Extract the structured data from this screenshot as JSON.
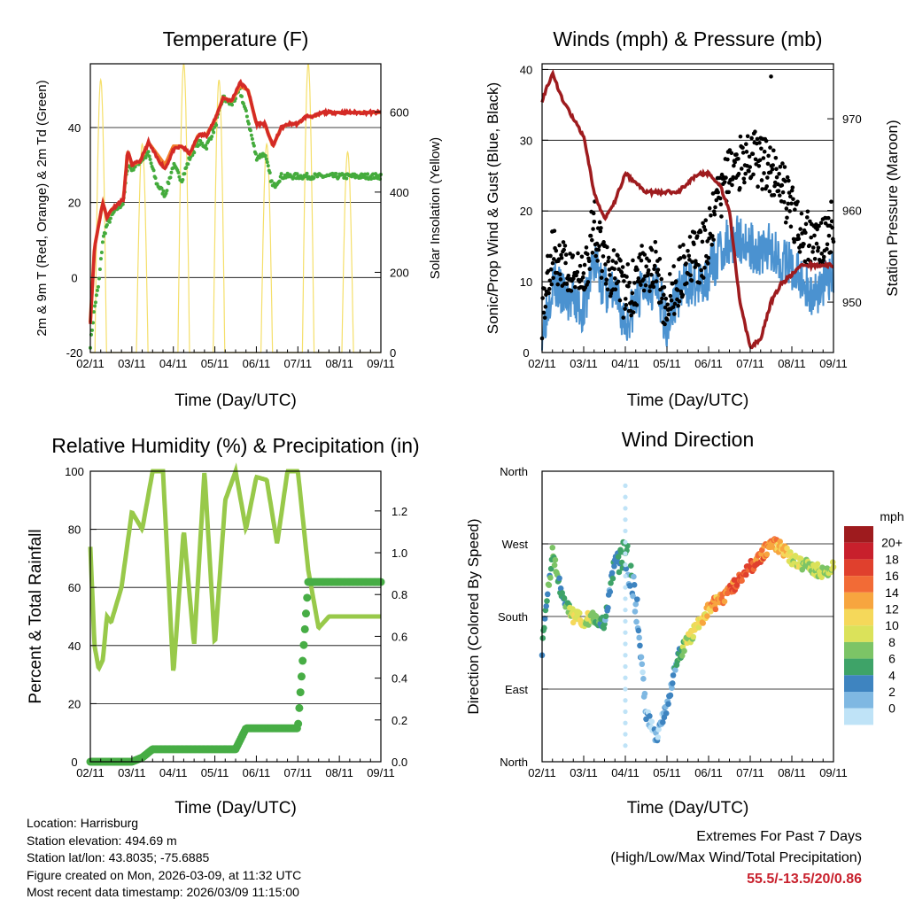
{
  "panels": {
    "temperature": {
      "title": "Temperature (F)",
      "ylabel": "2m & 9m T (Red, Orange) & 2m Td (Green)",
      "ylabel2": "Solar Insolation (Yellow)",
      "xlabel": "Time (Day/UTC)",
      "yticks": [
        "-20",
        "0",
        "20",
        "40"
      ],
      "y2ticks": [
        "0",
        "200",
        "400",
        "600"
      ]
    },
    "winds": {
      "title": "Winds (mph) & Pressure (mb)",
      "ylabel": "Sonic/Prop Wind & Gust (Blue, Black)",
      "ylabel2": "Station Pressure (Maroon)",
      "xlabel": "Time (Day/UTC)",
      "yticks": [
        "0",
        "10",
        "20",
        "30",
        "40"
      ],
      "y2ticks": [
        "950",
        "960",
        "970"
      ]
    },
    "humidity": {
      "title": "Relative Humidity (%) & Precipitation (in)",
      "ylabel": "Percent & Total Rainfall",
      "xlabel": "Time (Day/UTC)",
      "yticks": [
        "0",
        "20",
        "40",
        "60",
        "80",
        "100"
      ],
      "y2ticks": [
        "0.0",
        "0.2",
        "0.4",
        "0.6",
        "0.8",
        "1.0",
        "1.2"
      ]
    },
    "direction": {
      "title": "Wind Direction",
      "ylabel": "Direction (Colored By Speed)",
      "xlabel": "Time (Day/UTC)",
      "yticks": [
        "North",
        "East",
        "South",
        "West",
        "North"
      ]
    }
  },
  "xticks": [
    "02/11",
    "03/11",
    "04/11",
    "05/11",
    "06/11",
    "07/11",
    "08/11",
    "09/11"
  ],
  "legend": {
    "unit": "mph",
    "labels": [
      "20+",
      "18",
      "16",
      "14",
      "12",
      "10",
      "8",
      "6",
      "4",
      "2",
      "0"
    ],
    "colors": [
      "#9e1b1e",
      "#c8202c",
      "#e0402d",
      "#f26b36",
      "#f7a53f",
      "#f5d85a",
      "#dbe25a",
      "#7cc466",
      "#3ea368",
      "#3e84c0",
      "#7fb8e2",
      "#bfe3f7"
    ]
  },
  "info": {
    "location": "Location: Harrisburg",
    "elevation": "Station elevation: 494.69 m",
    "latlon": "Station lat/lon: 43.8035; -75.6885",
    "created": "Figure created on Mon, 2026-03-09, at 11:32 UTC",
    "latest": "Most recent data timestamp: 2026/03/09 11:15:00"
  },
  "extremes": {
    "line1": "Extremes For Past 7 Days",
    "line2": "(High/Low/Max Wind/Total Precipitation)",
    "values": "55.5/-13.5/20/0.86"
  },
  "chart_data": [
    {
      "type": "line",
      "title": "Temperature (F)",
      "ylim": [
        -20,
        57
      ],
      "y2lim": [
        0,
        720
      ],
      "x": [
        0,
        0.1,
        0.2,
        0.3,
        0.4,
        0.5,
        0.6,
        0.7,
        0.8,
        0.9,
        1.0,
        1.2,
        1.4,
        1.6,
        1.8,
        2.0,
        2.2,
        2.4,
        2.6,
        2.8,
        3.0,
        3.2,
        3.4,
        3.6,
        3.8,
        4.0,
        4.2,
        4.4,
        4.6,
        4.8,
        5.0,
        5.2,
        5.4,
        5.6,
        5.8,
        6.0,
        6.2,
        6.4,
        6.6,
        6.8,
        7.0
      ],
      "series": [
        {
          "name": "2m T",
          "color": "#d42a26",
          "values": [
            -12,
            8,
            14,
            20,
            16,
            18,
            19,
            20,
            21,
            34,
            30,
            31,
            36,
            32,
            29,
            34,
            35,
            33,
            38,
            38,
            42,
            48,
            47,
            52,
            50,
            41,
            41,
            35,
            40,
            41,
            41,
            43,
            43,
            44,
            44,
            44,
            44,
            44,
            44,
            44,
            44
          ]
        },
        {
          "name": "9m T",
          "color": "#f27f2c",
          "values": [
            -12,
            8,
            14,
            20,
            16,
            18,
            19,
            20,
            21,
            34,
            30,
            31,
            36,
            33,
            30,
            35,
            35,
            33,
            38,
            38,
            42,
            48,
            47,
            51,
            50,
            41,
            41,
            35,
            40,
            41,
            41,
            43,
            43,
            44,
            44,
            44,
            44,
            44,
            44,
            44,
            44
          ]
        },
        {
          "name": "2m Td",
          "color": "#44ab3c",
          "values": [
            -18,
            -8,
            -2,
            10,
            14,
            16,
            18,
            19,
            20,
            30,
            29,
            31,
            33,
            25,
            22,
            30,
            26,
            32,
            36,
            35,
            40,
            48,
            46,
            50,
            42,
            32,
            33,
            24,
            27,
            27,
            27,
            27,
            27,
            27,
            27,
            27,
            27,
            27,
            27,
            27,
            27
          ]
        },
        {
          "name": "Solar Insolation",
          "color": "#f5df6a",
          "peaks": [
            0.25,
            1.25,
            2.25,
            3.1,
            4.25,
            5.25,
            6.2
          ],
          "peak_values": [
            680,
            520,
            720,
            680,
            520,
            720,
            500
          ]
        }
      ]
    },
    {
      "type": "scatter",
      "title": "Winds (mph) & Pressure (mb)",
      "ylim": [
        0,
        40
      ],
      "y2lim": [
        944.5,
        976
      ],
      "x": [
        0,
        0.25,
        0.5,
        0.75,
        1.0,
        1.25,
        1.5,
        1.75,
        2.0,
        2.25,
        2.5,
        2.75,
        3.0,
        3.25,
        3.5,
        3.75,
        4.0,
        4.25,
        4.5,
        4.75,
        5.0,
        5.25,
        5.5,
        5.75,
        6.0,
        6.25,
        6.5,
        6.75,
        7.0
      ],
      "series": [
        {
          "name": "Wind",
          "color": "#4b92d0",
          "values": [
            3,
            10,
            8,
            7,
            6,
            13,
            9,
            8,
            4,
            7,
            10,
            9,
            4,
            8,
            10,
            9,
            11,
            14,
            16,
            16,
            15,
            14,
            15,
            13,
            12,
            10,
            8,
            10,
            11
          ]
        },
        {
          "name": "Gust",
          "color": "#000000",
          "values": [
            6,
            14,
            12,
            11,
            10,
            18,
            13,
            11,
            8,
            10,
            13,
            12,
            6,
            10,
            14,
            13,
            16,
            22,
            25,
            27,
            28,
            27,
            26,
            24,
            20,
            17,
            15,
            16,
            18
          ]
        },
        {
          "name": "Pressure",
          "color": "#9e1b1e",
          "values": [
            972,
            975,
            972,
            970,
            968,
            962,
            959,
            961,
            964,
            963,
            962,
            962,
            962,
            962,
            963,
            964,
            964,
            963,
            960,
            950,
            945,
            946,
            950,
            952,
            953,
            954,
            954,
            954,
            954
          ]
        }
      ]
    },
    {
      "type": "line",
      "title": "Relative Humidity (%) & Precipitation (in)",
      "ylim": [
        0,
        100
      ],
      "y2lim": [
        0,
        1.39
      ],
      "x": [
        0,
        0.1,
        0.2,
        0.3,
        0.4,
        0.5,
        0.75,
        1.0,
        1.25,
        1.5,
        1.75,
        2.0,
        2.25,
        2.5,
        2.75,
        3.0,
        3.25,
        3.5,
        3.75,
        4.0,
        4.25,
        4.5,
        4.75,
        5.0,
        5.25,
        5.5,
        5.75,
        6.0,
        6.25,
        6.5,
        6.75,
        7.0
      ],
      "series": [
        {
          "name": "Relative Humidity",
          "color": "#98c94a",
          "values": [
            74,
            40,
            32,
            35,
            50,
            48,
            60,
            86,
            80,
            100,
            100,
            30,
            80,
            40,
            100,
            40,
            90,
            100,
            80,
            98,
            97,
            75,
            100,
            100,
            66,
            46,
            50,
            50,
            50,
            50,
            50,
            50
          ]
        },
        {
          "name": "Total Rainfall",
          "color": "#47ad45",
          "values": [
            0,
            0,
            0,
            0,
            0,
            0,
            0,
            0,
            0.02,
            0.06,
            0.06,
            0.06,
            0.06,
            0.06,
            0.06,
            0.06,
            0.06,
            0.06,
            0.16,
            0.16,
            0.16,
            0.16,
            0.16,
            0.16,
            0.86,
            0.86,
            0.86,
            0.86,
            0.86,
            0.86,
            0.86,
            0.86
          ]
        }
      ]
    },
    {
      "type": "scatter",
      "title": "Wind Direction",
      "ylim": [
        0,
        360
      ],
      "x": [
        0,
        0.25,
        0.5,
        0.75,
        1.0,
        1.25,
        1.5,
        1.75,
        2.0,
        2.25,
        2.5,
        2.75,
        3.0,
        3.25,
        3.5,
        3.75,
        4.0,
        4.25,
        4.5,
        4.75,
        5.0,
        5.25,
        5.5,
        5.75,
        6.0,
        6.25,
        6.5,
        6.75,
        7.0
      ],
      "series": [
        {
          "name": "Direction (deg)",
          "values": [
            140,
            260,
            200,
            180,
            175,
            180,
            170,
            250,
            260,
            200,
            60,
            30,
            70,
            130,
            150,
            170,
            190,
            200,
            210,
            230,
            240,
            255,
            270,
            265,
            250,
            245,
            240,
            235,
            240
          ]
        },
        {
          "name": "Speed (mph)",
          "values": [
            5,
            8,
            6,
            12,
            12,
            9,
            5,
            6,
            6,
            4,
            3,
            3,
            3,
            6,
            11,
            12,
            14,
            16,
            17,
            18,
            18,
            17,
            16,
            14,
            12,
            10,
            10,
            10,
            10
          ]
        }
      ]
    }
  ]
}
